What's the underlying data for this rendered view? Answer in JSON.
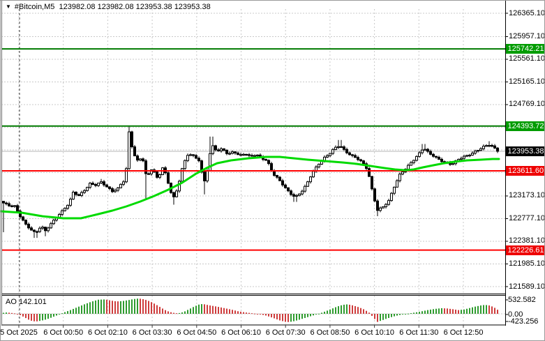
{
  "header": {
    "collapse_icon": "black-down-triangle",
    "symbol_period": "#Bitcoin,M5",
    "ohlc_text": "123982.08 123982.08 123953.38 123953.38"
  },
  "price_axis": {
    "ticks": [
      {
        "label": "126365.10",
        "price": 126365.1
      },
      {
        "label": "125957.10",
        "price": 125957.1
      },
      {
        "label": "125561.10",
        "price": 125561.1
      },
      {
        "label": "125165.10",
        "price": 125165.1
      },
      {
        "label": "124769.10",
        "price": 124769.1
      },
      {
        "label": "123173.10",
        "price": 123173.1
      },
      {
        "label": "122777.10",
        "price": 122777.1
      },
      {
        "label": "122381.10",
        "price": 122381.1
      },
      {
        "label": "121985.10",
        "price": 121985.1
      },
      {
        "label": "121589.10",
        "price": 121589.1
      }
    ],
    "badges": [
      {
        "label": "125742.21",
        "price": 125742.21,
        "kind": "resistance-level",
        "color": "#009c00"
      },
      {
        "label": "124393.72",
        "price": 124393.72,
        "kind": "resistance-level",
        "color": "#009c00"
      },
      {
        "label": "123953.38",
        "price": 123953.38,
        "kind": "current-price",
        "color": "#000000"
      },
      {
        "label": "123611.60",
        "price": 123611.6,
        "kind": "support-level",
        "color": "#ee0000"
      },
      {
        "label": "122226.61",
        "price": 122226.61,
        "kind": "support-level",
        "color": "#ee0000"
      }
    ]
  },
  "time_axis": {
    "labels": [
      "5 Oct 2025",
      "6 Oct 00:50",
      "6 Oct 02:10",
      "6 Oct 03:30",
      "6 Oct 04:50",
      "6 Oct 06:10",
      "6 Oct 07:30",
      "6 Oct 08:50",
      "6 Oct 10:10",
      "6 Oct 11:30",
      "6 Oct 12:50"
    ]
  },
  "ao_panel": {
    "label": "AO",
    "value": "142.101",
    "scale_labels": [
      "532.582",
      "0.00",
      "-423.256"
    ]
  },
  "colors": {
    "background": "#ffffff",
    "grid": "#c8c8c8",
    "day_separator": "#3c3c3c",
    "hline_green": "#007a00",
    "hline_red": "#ff0000",
    "badge_green": "#009c00",
    "badge_red": "#ee0000",
    "badge_black": "#000000",
    "current_price_line": "#b4b4b4",
    "ma_line": "#00da00",
    "candle": "#000000",
    "ao_green": "#2e9b2e",
    "ao_red": "#ce3c3c"
  },
  "chart_data": {
    "type": "candlestick",
    "symbol": "#Bitcoin",
    "period": "M5",
    "current_ohlc": {
      "open": 123982.08,
      "high": 123982.08,
      "low": 123953.38,
      "close": 123953.38
    },
    "ylim": [
      121589.1,
      126365.1
    ],
    "grid": "dashed-both-axes",
    "levels": [
      {
        "price": 125742.21,
        "type": "resistance",
        "color": "green"
      },
      {
        "price": 124393.72,
        "type": "resistance",
        "color": "green"
      },
      {
        "price": 123953.38,
        "type": "last-price",
        "color": "gray"
      },
      {
        "price": 123611.6,
        "type": "support",
        "color": "red"
      },
      {
        "price": 122226.61,
        "type": "support",
        "color": "red"
      }
    ],
    "grid_only_prices": [
      124373.1,
      123977.1,
      123581.1
    ],
    "price_path": [
      [
        4,
        123050,
        0,
        122540
      ],
      [
        12,
        123000,
        0,
        0
      ],
      [
        20,
        122990,
        0,
        0
      ],
      [
        28,
        122820,
        0,
        0
      ],
      [
        36,
        122680,
        0,
        0
      ],
      [
        44,
        122580,
        0,
        0
      ],
      [
        50,
        122520,
        0,
        122440
      ],
      [
        58,
        122640,
        0,
        0
      ],
      [
        64,
        122560,
        0,
        122470
      ],
      [
        72,
        122690,
        0,
        0
      ],
      [
        80,
        122810,
        0,
        0
      ],
      [
        90,
        122930,
        0,
        0
      ],
      [
        98,
        123040,
        0,
        0
      ],
      [
        104,
        123230,
        0,
        0
      ],
      [
        112,
        123180,
        0,
        0
      ],
      [
        120,
        123280,
        0,
        0
      ],
      [
        128,
        123390,
        0,
        0
      ],
      [
        136,
        123360,
        0,
        0
      ],
      [
        144,
        123410,
        123470,
        0
      ],
      [
        152,
        123330,
        0,
        0
      ],
      [
        160,
        123260,
        0,
        0
      ],
      [
        168,
        123310,
        0,
        0
      ],
      [
        175,
        123430,
        0,
        0
      ],
      [
        179,
        123420,
        0,
        0
      ],
      [
        183,
        124300,
        0,
        0
      ],
      [
        185,
        124260,
        124390,
        0
      ],
      [
        189,
        123960,
        0,
        0
      ],
      [
        195,
        123780,
        0,
        0
      ],
      [
        203,
        123860,
        0,
        0
      ],
      [
        209,
        123500,
        0,
        123130
      ],
      [
        217,
        123660,
        0,
        0
      ],
      [
        225,
        123460,
        0,
        0
      ],
      [
        233,
        123690,
        0,
        0
      ],
      [
        241,
        123360,
        0,
        0
      ],
      [
        247,
        123130,
        0,
        123020
      ],
      [
        253,
        123290,
        0,
        0
      ],
      [
        261,
        123700,
        0,
        0
      ],
      [
        269,
        123910,
        0,
        0
      ],
      [
        277,
        123860,
        0,
        0
      ],
      [
        285,
        123790,
        0,
        0
      ],
      [
        291,
        123390,
        0,
        123200
      ],
      [
        297,
        123680,
        0,
        0
      ],
      [
        302,
        124070,
        124210,
        0
      ],
      [
        310,
        123950,
        0,
        0
      ],
      [
        318,
        123990,
        0,
        0
      ],
      [
        326,
        123900,
        0,
        0
      ],
      [
        334,
        123960,
        0,
        0
      ],
      [
        342,
        123880,
        0,
        0
      ],
      [
        350,
        123910,
        0,
        0
      ],
      [
        358,
        123850,
        0,
        0
      ],
      [
        366,
        123900,
        0,
        0
      ],
      [
        374,
        123840,
        0,
        0
      ],
      [
        382,
        123790,
        0,
        0
      ],
      [
        390,
        123560,
        0,
        0
      ],
      [
        398,
        123460,
        0,
        0
      ],
      [
        406,
        123340,
        0,
        0
      ],
      [
        414,
        123230,
        0,
        0
      ],
      [
        422,
        123160,
        0,
        123070
      ],
      [
        430,
        123230,
        0,
        0
      ],
      [
        438,
        123360,
        0,
        0
      ],
      [
        446,
        123560,
        0,
        0
      ],
      [
        454,
        123710,
        0,
        0
      ],
      [
        462,
        123830,
        0,
        0
      ],
      [
        470,
        123900,
        0,
        0
      ],
      [
        478,
        124000,
        0,
        0
      ],
      [
        486,
        124050,
        124150,
        0
      ],
      [
        494,
        123950,
        0,
        0
      ],
      [
        502,
        123890,
        0,
        0
      ],
      [
        510,
        123840,
        0,
        0
      ],
      [
        518,
        123760,
        0,
        0
      ],
      [
        526,
        123620,
        0,
        0
      ],
      [
        534,
        123170,
        0,
        0
      ],
      [
        540,
        122930,
        0,
        122820
      ],
      [
        548,
        122990,
        0,
        0
      ],
      [
        556,
        123090,
        0,
        0
      ],
      [
        564,
        123330,
        0,
        0
      ],
      [
        572,
        123540,
        0,
        0
      ],
      [
        580,
        123650,
        0,
        0
      ],
      [
        588,
        123760,
        0,
        0
      ],
      [
        598,
        123890,
        0,
        0
      ],
      [
        606,
        124010,
        124080,
        0
      ],
      [
        614,
        123910,
        0,
        0
      ],
      [
        622,
        123860,
        0,
        0
      ],
      [
        630,
        123800,
        0,
        0
      ],
      [
        638,
        123760,
        0,
        0
      ],
      [
        646,
        123720,
        0,
        0
      ],
      [
        654,
        123790,
        0,
        0
      ],
      [
        662,
        123850,
        0,
        0
      ],
      [
        670,
        123890,
        0,
        0
      ],
      [
        678,
        123940,
        0,
        0
      ],
      [
        686,
        123990,
        0,
        0
      ],
      [
        694,
        124040,
        0,
        0
      ],
      [
        700,
        124060,
        124130,
        0
      ],
      [
        706,
        124030,
        0,
        0
      ],
      [
        712,
        123953.38,
        0,
        0
      ]
    ],
    "ma_path": [
      [
        0,
        122905
      ],
      [
        30,
        122880
      ],
      [
        60,
        122819
      ],
      [
        90,
        122783
      ],
      [
        115,
        122783
      ],
      [
        140,
        122856
      ],
      [
        160,
        122917
      ],
      [
        180,
        122990
      ],
      [
        200,
        123075
      ],
      [
        220,
        123173
      ],
      [
        240,
        123282
      ],
      [
        260,
        123404
      ],
      [
        280,
        123563
      ],
      [
        295,
        123660
      ],
      [
        310,
        123745
      ],
      [
        330,
        123794
      ],
      [
        355,
        123831
      ],
      [
        380,
        123855
      ],
      [
        400,
        123855
      ],
      [
        420,
        123831
      ],
      [
        440,
        123806
      ],
      [
        465,
        123782
      ],
      [
        490,
        123758
      ],
      [
        510,
        123733
      ],
      [
        530,
        123697
      ],
      [
        550,
        123660
      ],
      [
        565,
        123636
      ],
      [
        580,
        123623
      ],
      [
        592,
        123636
      ],
      [
        605,
        123673
      ],
      [
        620,
        123709
      ],
      [
        635,
        123745
      ],
      [
        650,
        123770
      ],
      [
        668,
        123794
      ],
      [
        688,
        123806
      ],
      [
        705,
        123819
      ],
      [
        714,
        123819
      ]
    ],
    "ao": {
      "name": "Awesome Oscillator",
      "last_value": 142.101,
      "scale_max": 532.582,
      "scale_min": -423.256,
      "path": [
        [
          2,
          30
        ],
        [
          8,
          45
        ],
        [
          14,
          35
        ],
        [
          20,
          15
        ],
        [
          26,
          -20
        ],
        [
          34,
          -120
        ],
        [
          42,
          -230
        ],
        [
          50,
          -270
        ],
        [
          58,
          -240
        ],
        [
          66,
          -190
        ],
        [
          74,
          -120
        ],
        [
          82,
          -40
        ],
        [
          90,
          40
        ],
        [
          100,
          130
        ],
        [
          110,
          230
        ],
        [
          120,
          330
        ],
        [
          130,
          420
        ],
        [
          140,
          490
        ],
        [
          150,
          500
        ],
        [
          158,
          460
        ],
        [
          166,
          430
        ],
        [
          174,
          440
        ],
        [
          182,
          470
        ],
        [
          190,
          510
        ],
        [
          198,
          532
        ],
        [
          206,
          500
        ],
        [
          214,
          430
        ],
        [
          222,
          330
        ],
        [
          230,
          210
        ],
        [
          238,
          100
        ],
        [
          246,
          40
        ],
        [
          254,
          15
        ],
        [
          262,
          60
        ],
        [
          270,
          160
        ],
        [
          278,
          260
        ],
        [
          286,
          340
        ],
        [
          292,
          330
        ],
        [
          300,
          290
        ],
        [
          310,
          250
        ],
        [
          320,
          200
        ],
        [
          330,
          150
        ],
        [
          340,
          90
        ],
        [
          350,
          50
        ],
        [
          360,
          20
        ],
        [
          370,
          -10
        ],
        [
          380,
          -60
        ],
        [
          390,
          -140
        ],
        [
          400,
          -230
        ],
        [
          410,
          -290
        ],
        [
          418,
          -270
        ],
        [
          426,
          -220
        ],
        [
          434,
          -160
        ],
        [
          442,
          -100
        ],
        [
          450,
          -40
        ],
        [
          458,
          20
        ],
        [
          466,
          90
        ],
        [
          474,
          170
        ],
        [
          482,
          250
        ],
        [
          490,
          310
        ],
        [
          497,
          330
        ],
        [
          505,
          290
        ],
        [
          513,
          230
        ],
        [
          521,
          150
        ],
        [
          528,
          40
        ],
        [
          534,
          -130
        ],
        [
          540,
          -280
        ],
        [
          546,
          -230
        ],
        [
          554,
          -160
        ],
        [
          562,
          -100
        ],
        [
          570,
          -50
        ],
        [
          578,
          -15
        ],
        [
          586,
          15
        ],
        [
          594,
          45
        ],
        [
          602,
          80
        ],
        [
          612,
          130
        ],
        [
          622,
          170
        ],
        [
          632,
          195
        ],
        [
          640,
          185
        ],
        [
          648,
          160
        ],
        [
          656,
          130
        ],
        [
          664,
          150
        ],
        [
          672,
          200
        ],
        [
          680,
          250
        ],
        [
          688,
          290
        ],
        [
          694,
          310
        ],
        [
          700,
          290
        ],
        [
          706,
          240
        ],
        [
          712,
          142.101
        ]
      ]
    }
  }
}
